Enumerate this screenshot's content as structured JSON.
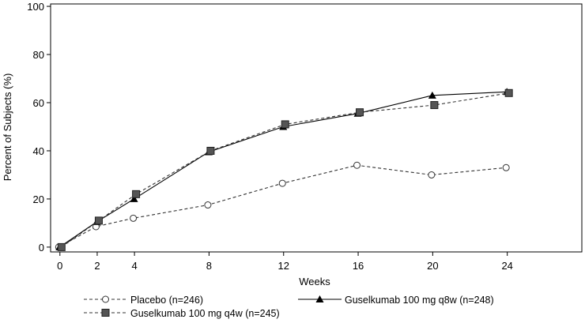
{
  "chart_data": {
    "type": "line",
    "title": "",
    "xlabel": "Weeks",
    "ylabel": "Percent of Subjects (%)",
    "xlim": [
      -0.5,
      28
    ],
    "ylim": [
      -2,
      101
    ],
    "x_ticks": [
      0,
      2,
      4,
      8,
      12,
      16,
      20,
      24
    ],
    "y_ticks": [
      0,
      20,
      40,
      60,
      80,
      100
    ],
    "grid": false,
    "legend_position": "bottom",
    "series": [
      {
        "name": "Placebo (n=246)",
        "line_style": "dashed",
        "marker": "open-circle",
        "color": "#333333",
        "x": [
          0,
          2,
          4,
          8,
          12,
          16,
          20,
          24
        ],
        "y": [
          0,
          8.5,
          12,
          17.5,
          26.5,
          34,
          30,
          33
        ]
      },
      {
        "name": "Guselkumab 100 mg q8w (n=248)",
        "line_style": "solid",
        "marker": "filled-triangle",
        "color": "#000000",
        "x": [
          0,
          2,
          4,
          8,
          12,
          16,
          20,
          24
        ],
        "y": [
          0,
          10.5,
          20,
          39.5,
          50,
          55.5,
          63,
          64.5
        ]
      },
      {
        "name": "Guselkumab 100 mg q4w (n=245)",
        "line_style": "dashed",
        "marker": "filled-square",
        "color": "#333333",
        "x": [
          0,
          2,
          4,
          8,
          12,
          16,
          20,
          24
        ],
        "y": [
          0,
          11,
          22,
          40,
          51,
          56,
          59,
          64
        ]
      }
    ]
  }
}
